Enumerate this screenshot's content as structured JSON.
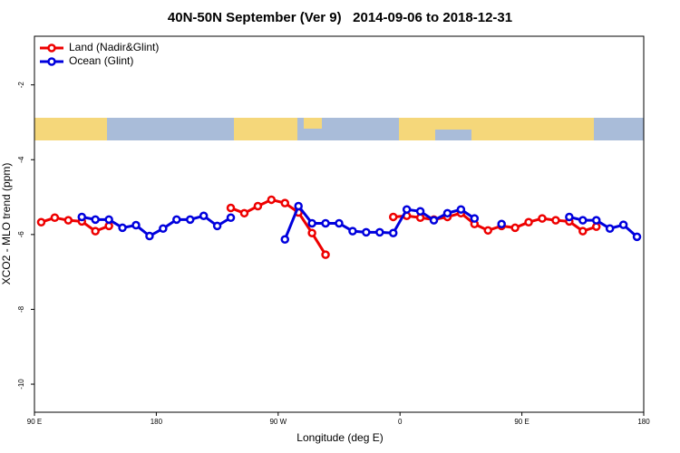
{
  "chart_data": {
    "type": "line",
    "title": "40N-50N September (Ver 9)   2014-09-06 to 2018-12-31",
    "xlabel": "Longitude (deg E)",
    "ylabel": "XCO2 - MLO trend (ppm)",
    "xlim": [
      90,
      540
    ],
    "ylim": [
      -10.75,
      -0.7
    ],
    "xticks": [
      {
        "value": 90,
        "label": "90 E"
      },
      180,
      {
        "value": 270,
        "label": "90 W"
      },
      {
        "value": 360,
        "label": "0"
      },
      {
        "value": 450,
        "label": "90 E"
      },
      {
        "value": 540,
        "label": "180"
      }
    ],
    "yticks": [
      -2,
      -4,
      -6,
      -8,
      -10
    ],
    "legend": "top-left",
    "series": [
      {
        "name": "Land (Nadir&Glint)",
        "color": "#ee0000",
        "x": [
          95,
          105,
          115,
          125,
          135,
          145,
          155,
          235,
          245,
          255,
          265,
          275,
          285,
          295,
          305,
          345,
          355,
          365,
          375,
          385,
          395,
          405,
          415,
          425,
          435,
          445,
          455,
          465,
          475,
          485,
          495,
          505
        ],
        "values": [
          -5.67,
          -5.55,
          -5.62,
          -5.65,
          -5.91,
          -5.77,
          null,
          -5.29,
          -5.43,
          -5.24,
          -5.07,
          -5.16,
          -5.41,
          -5.96,
          -6.54,
          null,
          -5.53,
          -5.5,
          -5.55,
          -5.6,
          -5.53,
          -5.43,
          -5.72,
          -5.89,
          -5.77,
          -5.82,
          -5.67,
          -5.57,
          -5.62,
          -5.65,
          -5.91,
          -5.79
        ]
      },
      {
        "name": "Ocean (Glint)",
        "color": "#0000dd",
        "x": [
          125,
          135,
          145,
          155,
          165,
          175,
          185,
          195,
          205,
          215,
          225,
          235,
          255,
          275,
          285,
          295,
          305,
          315,
          325,
          335,
          345,
          355,
          365,
          375,
          385,
          395,
          405,
          415,
          425,
          435,
          445,
          485,
          495,
          505,
          515,
          525,
          535
        ],
        "values": [
          -5.53,
          -5.6,
          -5.6,
          -5.82,
          -5.75,
          -6.04,
          -5.84,
          -5.6,
          -5.6,
          -5.5,
          -5.77,
          -5.55,
          null,
          -6.13,
          -5.24,
          -5.7,
          -5.7,
          -5.7,
          -5.91,
          -5.94,
          -5.94,
          -5.96,
          -5.33,
          -5.38,
          -5.62,
          -5.43,
          -5.33,
          -5.57,
          null,
          -5.72,
          null,
          -5.53,
          -5.62,
          -5.62,
          -5.84,
          -5.74,
          -6.06
        ]
      }
    ]
  }
}
